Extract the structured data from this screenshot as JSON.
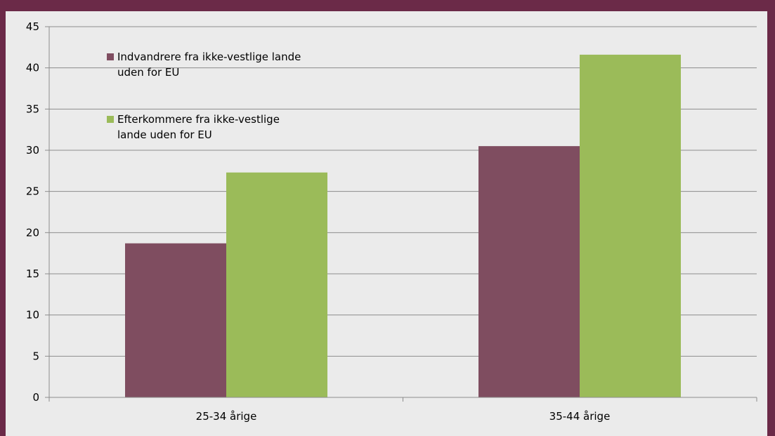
{
  "chart_data": {
    "type": "bar",
    "categories": [
      "25-34 årige",
      "35-44 årige"
    ],
    "series": [
      {
        "name": "Indvandrere fra ikke-vestlige lande uden for EU",
        "legend_lines": [
          "Indvandrere fra ikke-vestlige lande",
          "uden for EU"
        ],
        "color": "#7f4d60",
        "values": [
          18.7,
          30.5
        ]
      },
      {
        "name": "Efterkommere  fra ikke-vestlige lande uden for EU",
        "legend_lines": [
          "Efterkommere  fra ikke-vestlige",
          "lande uden for EU"
        ],
        "color": "#9bbb59",
        "values": [
          27.3,
          41.6
        ]
      }
    ],
    "yticks": [
      "0",
      "5",
      "10",
      "15",
      "20",
      "25",
      "30",
      "35",
      "40",
      "45"
    ],
    "ylim": [
      0,
      45
    ],
    "grid": true,
    "legend_position": "top-left",
    "title": "",
    "xlabel": "",
    "ylabel": ""
  },
  "colors": {
    "frame": "#6b2a48",
    "plot_background": "#ebebeb",
    "gridline": "#8c8c8c",
    "axis": "#8c8c8c"
  }
}
